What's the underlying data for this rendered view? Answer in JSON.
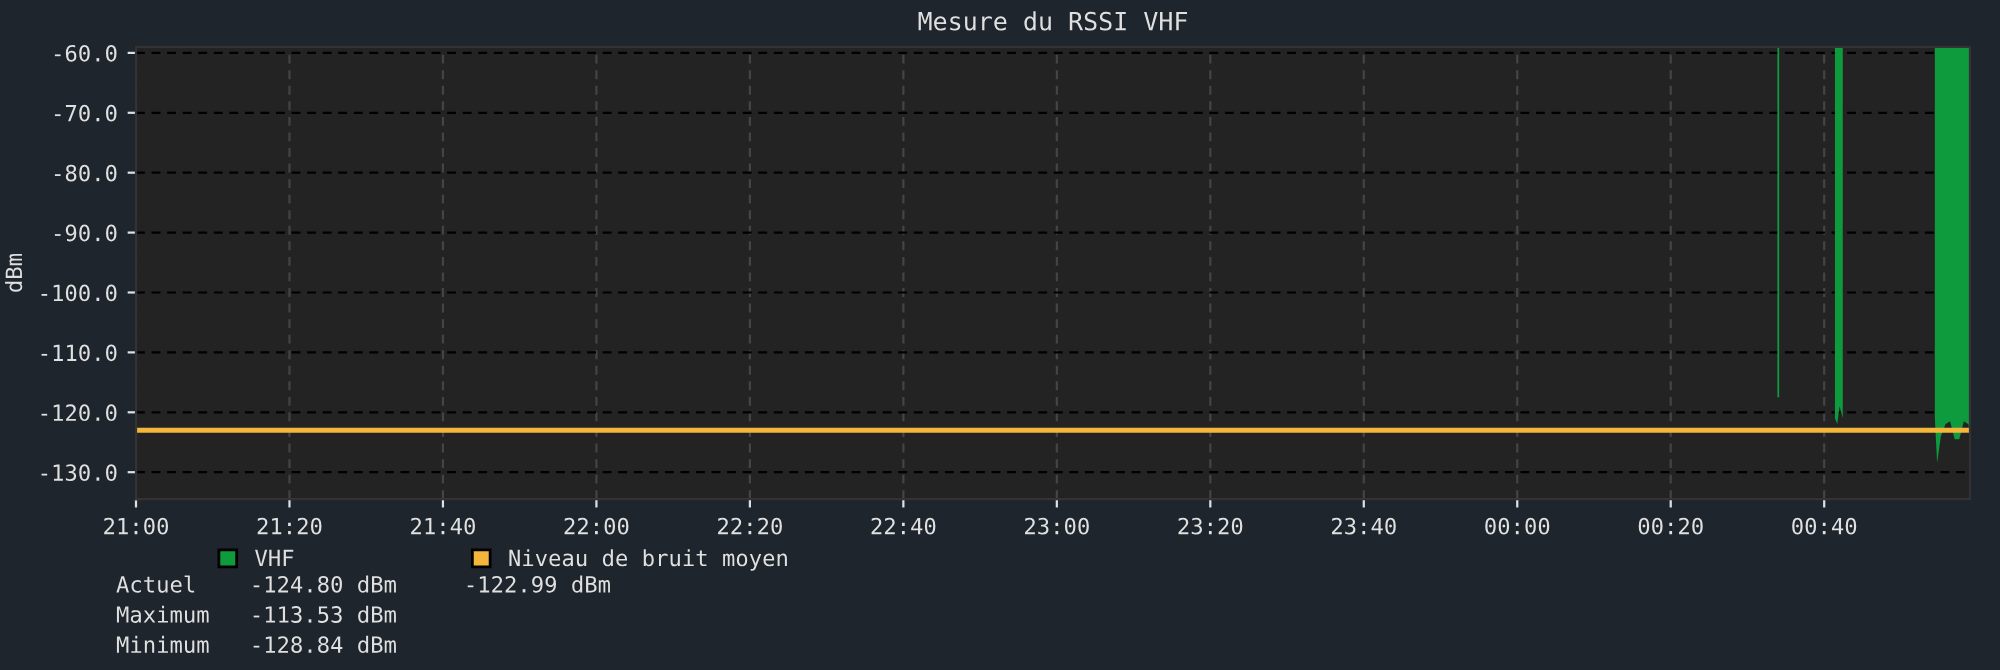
{
  "chart_data": {
    "type": "area",
    "title": "Mesure du RSSI VHF",
    "ylabel": "dBm",
    "xlim": [
      "2000-01-01T21:00",
      "2000-01-02T00:59"
    ],
    "ylim": [
      -134.5,
      -59
    ],
    "xticks": [
      {
        "value": "2000-01-01T21:00",
        "label": "21:00"
      },
      {
        "value": "2000-01-01T21:20",
        "label": "21:20"
      },
      {
        "value": "2000-01-01T21:40",
        "label": "21:40"
      },
      {
        "value": "2000-01-01T22:00",
        "label": "22:00"
      },
      {
        "value": "2000-01-01T22:20",
        "label": "22:20"
      },
      {
        "value": "2000-01-01T22:40",
        "label": "22:40"
      },
      {
        "value": "2000-01-01T23:00",
        "label": "23:00"
      },
      {
        "value": "2000-01-01T23:20",
        "label": "23:20"
      },
      {
        "value": "2000-01-01T23:40",
        "label": "23:40"
      },
      {
        "value": "2000-01-02T00:00",
        "label": "00:00"
      },
      {
        "value": "2000-01-02T00:20",
        "label": "00:20"
      },
      {
        "value": "2000-01-02T00:40",
        "label": "00:40"
      }
    ],
    "yticks": [
      {
        "value": -60,
        "label": "-60.0"
      },
      {
        "value": -70,
        "label": "-70.0"
      },
      {
        "value": -80,
        "label": "-80.0"
      },
      {
        "value": -90,
        "label": "-90.0"
      },
      {
        "value": -100,
        "label": "-100.0"
      },
      {
        "value": -110,
        "label": "-110.0"
      },
      {
        "value": -120,
        "label": "-120.0"
      },
      {
        "value": -130,
        "label": "-130.0"
      }
    ],
    "grid": true,
    "legend": "bottom",
    "series": [
      {
        "name": "VHF",
        "color": "#0e9b3e",
        "x": [
          "2000-01-02T00:33:54",
          "2000-01-02T00:34:08",
          "2000-01-02T00:34:20",
          "2000-01-02T00:41:24",
          "2000-01-02T00:41:42",
          "2000-01-02T00:42:00",
          "2000-01-02T00:42:25",
          "2000-01-02T00:42:36",
          "2000-01-02T00:54:25",
          "2000-01-02T00:54:43",
          "2000-01-02T00:55:12",
          "2000-01-02T00:55:48",
          "2000-01-02T00:56:24",
          "2000-01-02T00:57:00",
          "2000-01-02T00:57:36",
          "2000-01-02T00:58:12",
          "2000-01-02T00:58:48",
          "2000-01-02T00:59:00"
        ],
        "values": [
          -117.5,
          -117.5,
          null,
          -121,
          -122,
          -119,
          -121,
          null,
          -121,
          -128.5,
          -124,
          -122,
          -121.5,
          -124.5,
          -124.5,
          -121.5,
          -122,
          -124.8
        ]
      },
      {
        "name": "Niveau de bruit moyen",
        "type": "line",
        "color": "#f5b73b",
        "x": [
          "2000-01-01T21:00",
          "2000-01-02T00:59"
        ],
        "values": [
          -123,
          -123
        ]
      }
    ],
    "annotations": [
      "Actuel    -124.80 dBm     -122.99 dBm",
      "Maximum   -113.53 dBm",
      "Minimum   -128.84 dBm"
    ]
  }
}
